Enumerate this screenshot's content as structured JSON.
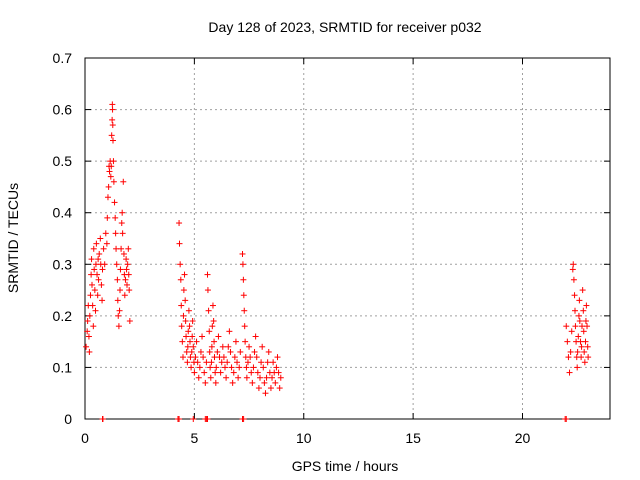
{
  "chart_data": {
    "type": "scatter",
    "title": "Day 128 of 2023, SRMTID for receiver p032",
    "xlabel": "GPS time / hours",
    "ylabel": "SRMTID / TECUs",
    "xlim": [
      0,
      24
    ],
    "ylim": [
      0,
      0.7
    ],
    "xticks": [
      "0",
      "5",
      "10",
      "15",
      "20"
    ],
    "xtick_values": [
      0,
      5,
      10,
      15,
      20
    ],
    "yticks": [
      "0",
      "0.1",
      "0.2",
      "0.3",
      "0.4",
      "0.5",
      "0.6",
      "0.7"
    ],
    "ytick_values": [
      0,
      0.1,
      0.2,
      0.3,
      0.4,
      0.5,
      0.6,
      0.7
    ],
    "grid": true,
    "marker": "+",
    "series": [
      {
        "color": "#ff0000",
        "points": [
          [
            0.05,
            0.14
          ],
          [
            0.1,
            0.17
          ],
          [
            0.12,
            0.19
          ],
          [
            0.15,
            0.22
          ],
          [
            0.18,
            0.16
          ],
          [
            0.2,
            0.13
          ],
          [
            0.22,
            0.2
          ],
          [
            0.25,
            0.24
          ],
          [
            0.28,
            0.28
          ],
          [
            0.3,
            0.31
          ],
          [
            0.32,
            0.26
          ],
          [
            0.35,
            0.22
          ],
          [
            0.38,
            0.18
          ],
          [
            0.4,
            0.33
          ],
          [
            0.42,
            0.29
          ],
          [
            0.45,
            0.25
          ],
          [
            0.48,
            0.21
          ],
          [
            0.5,
            0.3
          ],
          [
            0.52,
            0.34
          ],
          [
            0.55,
            0.28
          ],
          [
            0.58,
            0.24
          ],
          [
            0.6,
            0.31
          ],
          [
            0.62,
            0.27
          ],
          [
            0.65,
            0.32
          ],
          [
            0.7,
            0.35
          ],
          [
            0.72,
            0.3
          ],
          [
            0.75,
            0.26
          ],
          [
            0.78,
            0.23
          ],
          [
            0.8,
            0.29
          ],
          [
            0.85,
            0.33
          ],
          [
            0.9,
            0.3
          ],
          [
            0.95,
            0.36
          ],
          [
            1.0,
            0.34
          ],
          [
            1.02,
            0.39
          ],
          [
            1.05,
            0.43
          ],
          [
            1.08,
            0.45
          ],
          [
            1.1,
            0.49
          ],
          [
            1.12,
            0.48
          ],
          [
            1.15,
            0.5
          ],
          [
            1.18,
            0.47
          ],
          [
            1.2,
            0.49
          ],
          [
            1.22,
            0.55
          ],
          [
            1.24,
            0.58
          ],
          [
            1.25,
            0.61
          ],
          [
            1.26,
            0.6
          ],
          [
            1.27,
            0.57
          ],
          [
            1.28,
            0.54
          ],
          [
            1.3,
            0.5
          ],
          [
            1.32,
            0.46
          ],
          [
            1.35,
            0.42
          ],
          [
            1.38,
            0.39
          ],
          [
            1.4,
            0.36
          ],
          [
            1.42,
            0.33
          ],
          [
            1.45,
            0.3
          ],
          [
            1.48,
            0.27
          ],
          [
            1.5,
            0.23
          ],
          [
            1.52,
            0.2
          ],
          [
            1.55,
            0.18
          ],
          [
            1.58,
            0.21
          ],
          [
            1.6,
            0.25
          ],
          [
            1.62,
            0.29
          ],
          [
            1.65,
            0.33
          ],
          [
            1.68,
            0.38
          ],
          [
            1.7,
            0.4
          ],
          [
            1.72,
            0.36
          ],
          [
            1.75,
            0.46
          ],
          [
            1.78,
            0.32
          ],
          [
            1.8,
            0.28
          ],
          [
            1.82,
            0.24
          ],
          [
            1.85,
            0.27
          ],
          [
            1.88,
            0.31
          ],
          [
            1.9,
            0.29
          ],
          [
            1.92,
            0.26
          ],
          [
            1.95,
            0.3
          ],
          [
            1.98,
            0.33
          ],
          [
            2.0,
            0.28
          ],
          [
            2.02,
            0.25
          ],
          [
            2.05,
            0.19
          ],
          [
            4.3,
            0.38
          ],
          [
            4.32,
            0.34
          ],
          [
            4.35,
            0.3
          ],
          [
            4.38,
            0.27
          ],
          [
            4.4,
            0.22
          ],
          [
            4.42,
            0.18
          ],
          [
            4.45,
            0.15
          ],
          [
            4.48,
            0.12
          ],
          [
            4.5,
            0.2
          ],
          [
            4.52,
            0.25
          ],
          [
            4.55,
            0.28
          ],
          [
            4.58,
            0.23
          ],
          [
            4.6,
            0.19
          ],
          [
            4.62,
            0.16
          ],
          [
            4.65,
            0.13
          ],
          [
            4.68,
            0.11
          ],
          [
            4.7,
            0.14
          ],
          [
            4.72,
            0.17
          ],
          [
            4.75,
            0.21
          ],
          [
            4.78,
            0.18
          ],
          [
            4.8,
            0.15
          ],
          [
            4.82,
            0.12
          ],
          [
            4.85,
            0.1
          ],
          [
            4.88,
            0.13
          ],
          [
            4.9,
            0.16
          ],
          [
            4.92,
            0.19
          ],
          [
            4.95,
            0.14
          ],
          [
            4.98,
            0.11
          ],
          [
            5.0,
            0.09
          ],
          [
            5.05,
            0.12
          ],
          [
            5.1,
            0.15
          ],
          [
            5.15,
            0.11
          ],
          [
            5.2,
            0.08
          ],
          [
            5.25,
            0.1
          ],
          [
            5.3,
            0.13
          ],
          [
            5.35,
            0.16
          ],
          [
            5.4,
            0.12
          ],
          [
            5.45,
            0.09
          ],
          [
            5.5,
            0.07
          ],
          [
            5.55,
            0.11
          ],
          [
            5.6,
            0.28
          ],
          [
            5.62,
            0.25
          ],
          [
            5.65,
            0.21
          ],
          [
            5.68,
            0.17
          ],
          [
            5.7,
            0.13
          ],
          [
            5.72,
            0.1
          ],
          [
            5.75,
            0.08
          ],
          [
            5.78,
            0.11
          ],
          [
            5.8,
            0.14
          ],
          [
            5.82,
            0.18
          ],
          [
            5.85,
            0.22
          ],
          [
            5.88,
            0.19
          ],
          [
            5.9,
            0.15
          ],
          [
            5.92,
            0.12
          ],
          [
            5.95,
            0.09
          ],
          [
            5.98,
            0.07
          ],
          [
            6.0,
            0.1
          ],
          [
            6.05,
            0.13
          ],
          [
            6.1,
            0.16
          ],
          [
            6.15,
            0.12
          ],
          [
            6.2,
            0.09
          ],
          [
            6.25,
            0.11
          ],
          [
            6.3,
            0.14
          ],
          [
            6.35,
            0.12
          ],
          [
            6.4,
            0.1
          ],
          [
            6.45,
            0.08
          ],
          [
            6.5,
            0.11
          ],
          [
            6.55,
            0.14
          ],
          [
            6.6,
            0.17
          ],
          [
            6.65,
            0.13
          ],
          [
            6.7,
            0.1
          ],
          [
            6.75,
            0.07
          ],
          [
            6.8,
            0.09
          ],
          [
            6.85,
            0.12
          ],
          [
            6.9,
            0.15
          ],
          [
            6.95,
            0.11
          ],
          [
            7.0,
            0.08
          ],
          [
            7.05,
            0.1
          ],
          [
            7.1,
            0.13
          ],
          [
            7.2,
            0.32
          ],
          [
            7.22,
            0.3
          ],
          [
            7.24,
            0.27
          ],
          [
            7.26,
            0.24
          ],
          [
            7.28,
            0.21
          ],
          [
            7.3,
            0.18
          ],
          [
            7.32,
            0.15
          ],
          [
            7.35,
            0.12
          ],
          [
            7.38,
            0.1
          ],
          [
            7.4,
            0.08
          ],
          [
            7.45,
            0.11
          ],
          [
            7.5,
            0.14
          ],
          [
            7.55,
            0.12
          ],
          [
            7.6,
            0.09
          ],
          [
            7.65,
            0.07
          ],
          [
            7.7,
            0.1
          ],
          [
            7.75,
            0.13
          ],
          [
            7.8,
            0.16
          ],
          [
            7.85,
            0.12
          ],
          [
            7.9,
            0.09
          ],
          [
            7.95,
            0.06
          ],
          [
            8.0,
            0.08
          ],
          [
            8.05,
            0.11
          ],
          [
            8.1,
            0.14
          ],
          [
            8.15,
            0.1
          ],
          [
            8.2,
            0.07
          ],
          [
            8.25,
            0.05
          ],
          [
            8.3,
            0.08
          ],
          [
            8.35,
            0.11
          ],
          [
            8.4,
            0.13
          ],
          [
            8.45,
            0.09
          ],
          [
            8.5,
            0.06
          ],
          [
            8.55,
            0.08
          ],
          [
            8.6,
            0.11
          ],
          [
            8.65,
            0.09
          ],
          [
            8.7,
            0.07
          ],
          [
            8.75,
            0.1
          ],
          [
            8.8,
            0.12
          ],
          [
            8.85,
            0.09
          ],
          [
            8.9,
            0.06
          ],
          [
            8.95,
            0.08
          ],
          [
            22.0,
            0.18
          ],
          [
            22.05,
            0.15
          ],
          [
            22.1,
            0.12
          ],
          [
            22.15,
            0.09
          ],
          [
            22.2,
            0.13
          ],
          [
            22.25,
            0.17
          ],
          [
            22.3,
            0.29
          ],
          [
            22.32,
            0.3
          ],
          [
            22.35,
            0.27
          ],
          [
            22.38,
            0.24
          ],
          [
            22.4,
            0.21
          ],
          [
            22.42,
            0.18
          ],
          [
            22.45,
            0.15
          ],
          [
            22.48,
            0.12
          ],
          [
            22.5,
            0.1
          ],
          [
            22.52,
            0.13
          ],
          [
            22.55,
            0.16
          ],
          [
            22.58,
            0.2
          ],
          [
            22.6,
            0.23
          ],
          [
            22.62,
            0.19
          ],
          [
            22.65,
            0.15
          ],
          [
            22.68,
            0.12
          ],
          [
            22.7,
            0.14
          ],
          [
            22.72,
            0.18
          ],
          [
            22.75,
            0.25
          ],
          [
            22.78,
            0.21
          ],
          [
            22.8,
            0.17
          ],
          [
            22.82,
            0.13
          ],
          [
            22.85,
            0.11
          ],
          [
            22.88,
            0.15
          ],
          [
            22.9,
            0.19
          ],
          [
            22.92,
            0.22
          ],
          [
            22.95,
            0.18
          ],
          [
            22.98,
            0.14
          ],
          [
            23.0,
            0.12
          ]
        ],
        "zero_points": [
          0.8,
          0.82,
          4.25,
          4.3,
          4.95,
          5.5,
          5.55,
          5.6,
          7.2,
          7.25,
          21.95,
          22.0
        ]
      }
    ]
  }
}
